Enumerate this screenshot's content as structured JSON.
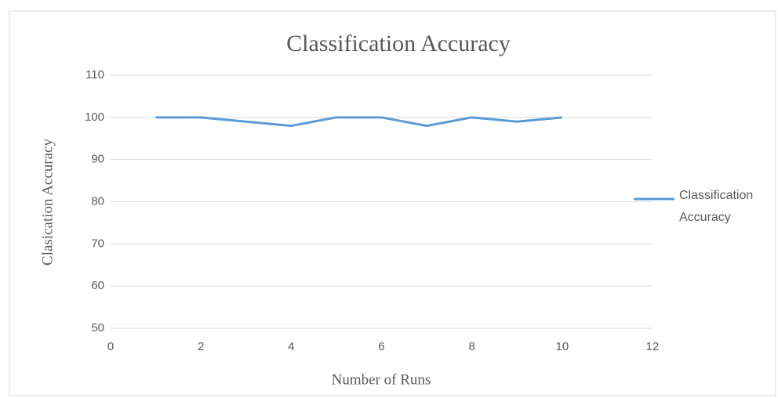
{
  "chart_data": {
    "type": "line",
    "title": "Classification Accuracy",
    "x_label": "Number of Runs",
    "y_label": "Clasication Accuracy",
    "x": [
      1,
      2,
      3,
      4,
      5,
      6,
      7,
      8,
      9,
      10
    ],
    "series": [
      {
        "name": "Classification Accuracy",
        "color": "#5b9bd5",
        "values": [
          100,
          100,
          99,
          98,
          100,
          100,
          98,
          100,
          99,
          100
        ]
      }
    ],
    "xlim": [
      0,
      12
    ],
    "xticks": [
      0,
      2,
      4,
      6,
      8,
      10,
      12
    ],
    "ylim": [
      50,
      110
    ],
    "yticks": [
      50,
      60,
      70,
      80,
      90,
      100,
      110
    ],
    "grid": true,
    "legend": "right"
  }
}
